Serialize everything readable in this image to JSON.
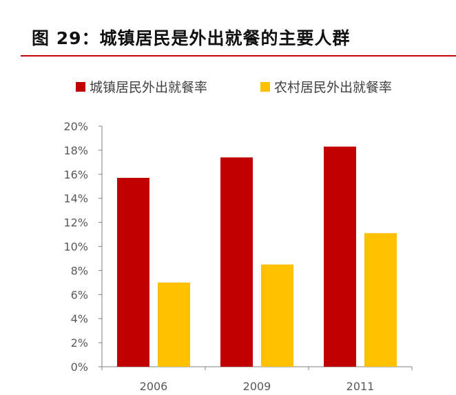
{
  "header": {
    "title": "图 29：城镇居民是外出就餐的主要人群"
  },
  "colors": {
    "accent_rule": "#c00000",
    "series_urban": "#c00000",
    "series_rural": "#ffc000",
    "axis": "#7f7f7f",
    "text": "#595959"
  },
  "chart_data": {
    "type": "bar",
    "categories": [
      "2006",
      "2009",
      "2011"
    ],
    "series": [
      {
        "name": "城镇居民外出就餐率",
        "values": [
          15.7,
          17.4,
          18.3
        ]
      },
      {
        "name": "农村居民外出就餐率",
        "values": [
          7.0,
          8.5,
          11.1
        ]
      }
    ],
    "ylim": [
      0,
      20
    ],
    "yticks": [
      "0%",
      "2%",
      "4%",
      "6%",
      "8%",
      "10%",
      "12%",
      "14%",
      "16%",
      "18%",
      "20%"
    ],
    "ystep": 2,
    "grid": false,
    "legend": "top",
    "xlabel": "",
    "ylabel": ""
  }
}
